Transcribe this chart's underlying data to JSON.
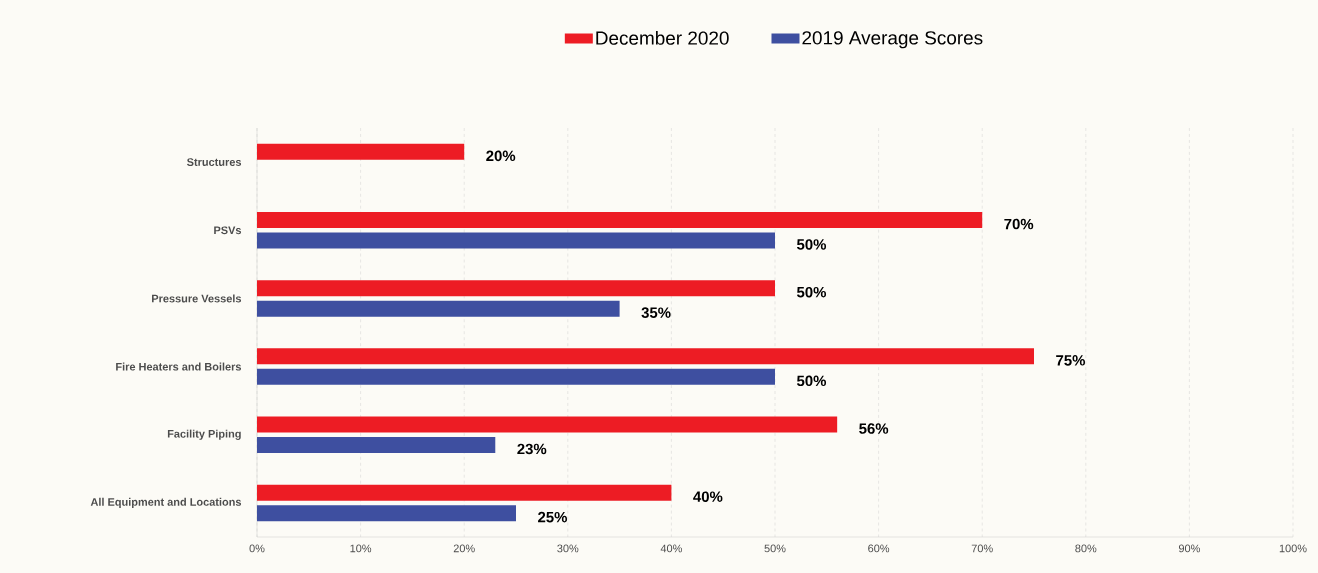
{
  "chart_data": {
    "type": "bar",
    "orientation": "horizontal",
    "categories": [
      "Structures",
      "PSVs",
      "Pressure Vessels",
      "Fire Heaters and Boilers",
      "Facility Piping",
      "All Equipment and Locations"
    ],
    "series": [
      {
        "name": "December 2020",
        "color": "#ed1c24",
        "values": [
          20,
          70,
          50,
          75,
          56,
          40
        ],
        "value_labels": [
          "20%",
          "70%",
          "50%",
          "75%",
          "56%",
          "40%"
        ]
      },
      {
        "name": "2019 Average Scores",
        "color": "#3e4fa0",
        "values": [
          null,
          50,
          35,
          50,
          23,
          25
        ],
        "value_labels": [
          null,
          "50%",
          "35%",
          "50%",
          "23%",
          "25%"
        ]
      }
    ],
    "xlim": [
      0,
      100
    ],
    "xticks": [
      {
        "value": 0,
        "label": "0%"
      },
      {
        "value": 10,
        "label": "10%"
      },
      {
        "value": 20,
        "label": "20%"
      },
      {
        "value": 30,
        "label": "30%"
      },
      {
        "value": 40,
        "label": "40%"
      },
      {
        "value": 50,
        "label": "50%"
      },
      {
        "value": 60,
        "label": "60%"
      },
      {
        "value": 70,
        "label": "70%"
      },
      {
        "value": 80,
        "label": "80%"
      },
      {
        "value": 90,
        "label": "90%"
      },
      {
        "value": 100,
        "label": "100%"
      }
    ],
    "grid": "x",
    "legend": "top"
  }
}
